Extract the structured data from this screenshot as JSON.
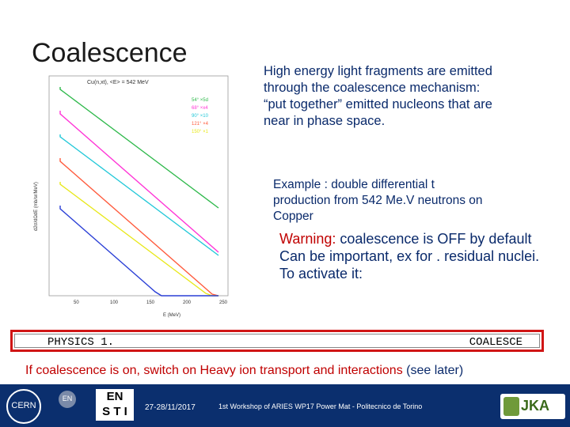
{
  "slide": {
    "title": "Coalescence",
    "paragraph": "High energy light fragments  are emitted through the coalescence mechanism: “put together” emitted nucleons that are near in phase space.",
    "example": "Example : double differential t production from  542 Me.V neutrons on Copper",
    "warning_label": "Warning:",
    "warning_line1": " coalescence is OFF by default",
    "warning_line2": "Can be important, ex for . residual nuclei.",
    "warning_line3": "To activate it:",
    "code_left": "PHYSICS 1.",
    "code_right": "COALESCE",
    "note_part1": "If coalescence is on, switch on Heavy ion transport and interactions ",
    "note_part2": "(see later)"
  },
  "footer": {
    "cern_logo": "CERN",
    "en_logo": "EN",
    "ensti_top": "EN",
    "ensti_bottom": "S T I",
    "date": "27-28/11/2017",
    "workshop": "1st Workshop of ARIES WP17 Power Mat - Politecnico de Torino",
    "logo_right": "JKA",
    "bg_color": "#0b2f6e"
  },
  "chart_data": {
    "type": "line",
    "title": "Cu(n,xt), <E> = 542 MeV",
    "xlabel": "E (MeV)",
    "ylabel": "d2σ/dΩdE (mb/sr/MeV)",
    "x_ticks": [
      "50",
      "100",
      "150",
      "200",
      "250"
    ],
    "legend": [
      "54° ×5d",
      "68° ×x4",
      "90° ×10",
      "121° ×4",
      "150° ×1"
    ],
    "log_scale_y": true,
    "series": [
      {
        "name": "54°",
        "color": "#2db84a"
      },
      {
        "name": "68°",
        "color": "#ff33d6"
      },
      {
        "name": "90°",
        "color": "#22c8d8"
      },
      {
        "name": "121°",
        "color": "#ff5a3c"
      },
      {
        "name": "150°",
        "color": "#e8e81a"
      }
    ],
    "extra_series": [
      {
        "color": "#2a3fd6"
      }
    ]
  }
}
